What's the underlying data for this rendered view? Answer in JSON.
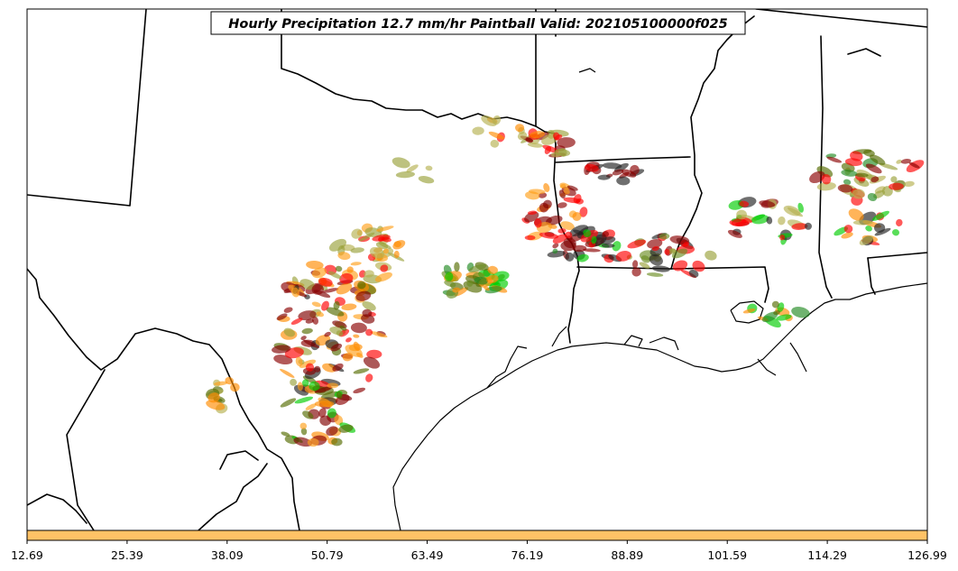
{
  "map": {
    "title": "Hourly Precipitation 12.7 mm/hr Paintball Valid: 202105100000f025",
    "colorbar": {
      "color": "#ffc266",
      "tick_labels": [
        "12.69",
        "25.39",
        "38.09",
        "50.79",
        "63.49",
        "76.19",
        "88.89",
        "101.59",
        "114.29",
        "126.99"
      ]
    },
    "paintball_colors": [
      "#ff0000",
      "#ff8c00",
      "#ff9f1a",
      "#556b00",
      "#6b8e23",
      "#9aa23a",
      "#b5b050",
      "#00cc00",
      "#228b22",
      "#8b0000",
      "#800000",
      "#222222"
    ]
  }
}
